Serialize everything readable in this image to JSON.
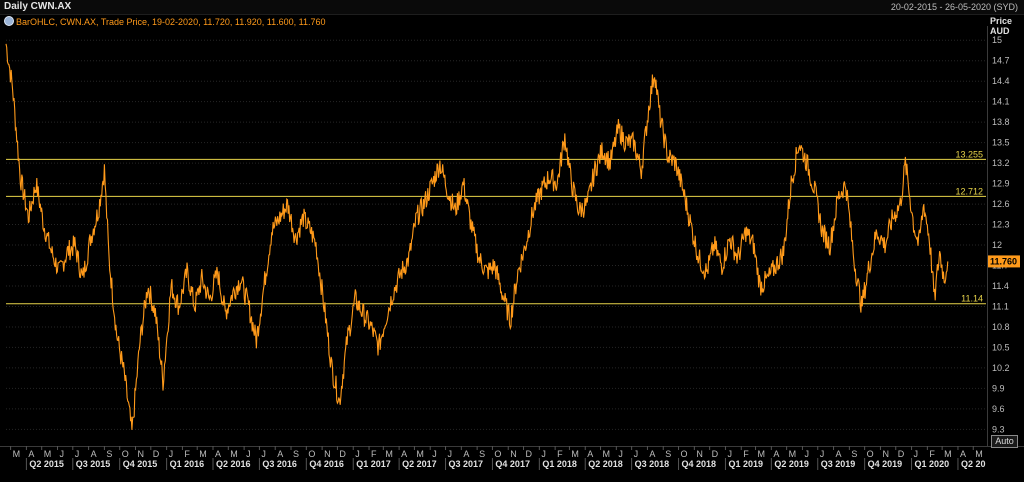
{
  "header": {
    "title": "Daily CWN.AX",
    "date_range": "20-02-2015 - 26-05-2020 (SYD)"
  },
  "legend": {
    "text": "BarOHLC, CWN.AX, Trade Price, 19-02-2020, 11.720, 11.920, 11.600, 11.760",
    "icon": "series-icon"
  },
  "axis": {
    "price_title_line1": "Price",
    "price_title_line2": "AUD",
    "auto_label": "Auto"
  },
  "colors": {
    "series": "#ff9a1a",
    "hline": "#e8d44a",
    "grid": "#262626",
    "badge_bg": "#ff9a1a"
  },
  "chart_data": {
    "type": "line",
    "title": "Daily CWN.AX",
    "ylabel": "Price AUD",
    "ylim": [
      9.1,
      15.15
    ],
    "xlim": [
      "2015-02-20",
      "2020-05-26"
    ],
    "yticks": [
      15,
      14.7,
      14.4,
      14.1,
      13.8,
      13.5,
      13.2,
      12.9,
      12.6,
      12.3,
      12,
      11.7,
      11.4,
      11.1,
      10.8,
      10.5,
      10.2,
      9.9,
      9.6,
      9.3
    ],
    "y_tick_labels": [
      "15",
      "14.7",
      "14.4",
      "14.1",
      "13.8",
      "13.5",
      "13.2",
      "12.9",
      "12.6",
      "12.3",
      "12",
      "11.7",
      "11.4",
      "11.1",
      "10.8",
      "10.5",
      "10.2",
      "9.9",
      "9.6",
      "9.3"
    ],
    "month_labels": [
      "M",
      "A",
      "M",
      "J",
      "J",
      "A",
      "S",
      "O",
      "N",
      "D",
      "J",
      "F",
      "M",
      "A",
      "M",
      "J",
      "J",
      "A",
      "S",
      "O",
      "N",
      "D",
      "J",
      "F",
      "M",
      "A",
      "M",
      "J",
      "J",
      "A",
      "S",
      "O",
      "N",
      "D",
      "J",
      "F",
      "M",
      "A",
      "M",
      "J",
      "J",
      "A",
      "S",
      "O",
      "N",
      "D",
      "J",
      "F",
      "M",
      "A",
      "M",
      "J",
      "J",
      "A",
      "S",
      "O",
      "N",
      "D",
      "J",
      "F",
      "M",
      "A",
      "M"
    ],
    "quarter_labels": [
      "Q2 2015",
      "Q3 2015",
      "Q4 2015",
      "Q1 2016",
      "Q2 2016",
      "Q3 2016",
      "Q4 2016",
      "Q1 2017",
      "Q2 2017",
      "Q3 2017",
      "Q4 2017",
      "Q1 2018",
      "Q2 2018",
      "Q3 2018",
      "Q4 2018",
      "Q1 2019",
      "Q2 2019",
      "Q3 2019",
      "Q4 2019",
      "Q1 2020",
      "Q2 20"
    ],
    "horizontal_lines": [
      {
        "value": 13.255,
        "label": "13.255"
      },
      {
        "value": 12.712,
        "label": "12.712"
      },
      {
        "value": 11.14,
        "label": "11.14"
      }
    ],
    "last_price": {
      "value": 11.76,
      "label": "11.760"
    },
    "series": [
      {
        "name": "CWN.AX",
        "points": [
          [
            "2015-02-20",
            14.95
          ],
          [
            "2015-03-05",
            14.3
          ],
          [
            "2015-03-20",
            13.0
          ],
          [
            "2015-04-05",
            12.4
          ],
          [
            "2015-04-20",
            12.9
          ],
          [
            "2015-05-05",
            12.3
          ],
          [
            "2015-05-20",
            11.9
          ],
          [
            "2015-06-05",
            11.6
          ],
          [
            "2015-06-20",
            11.9
          ],
          [
            "2015-07-05",
            12.0
          ],
          [
            "2015-07-20",
            11.5
          ],
          [
            "2015-08-05",
            12.1
          ],
          [
            "2015-08-20",
            12.5
          ],
          [
            "2015-09-01",
            13.1
          ],
          [
            "2015-09-10",
            11.8
          ],
          [
            "2015-09-25",
            10.7
          ],
          [
            "2015-10-10",
            10.1
          ],
          [
            "2015-10-25",
            9.25
          ],
          [
            "2015-11-10",
            10.6
          ],
          [
            "2015-11-25",
            11.4
          ],
          [
            "2015-12-10",
            11.0
          ],
          [
            "2015-12-25",
            10.0
          ],
          [
            "2016-01-10",
            11.4
          ],
          [
            "2016-01-25",
            11.1
          ],
          [
            "2016-02-10",
            11.6
          ],
          [
            "2016-02-25",
            11.1
          ],
          [
            "2016-03-10",
            11.5
          ],
          [
            "2016-03-25",
            11.2
          ],
          [
            "2016-04-10",
            11.6
          ],
          [
            "2016-04-25",
            11.0
          ],
          [
            "2016-05-10",
            11.3
          ],
          [
            "2016-05-25",
            11.5
          ],
          [
            "2016-06-10",
            11.1
          ],
          [
            "2016-06-25",
            10.6
          ],
          [
            "2016-07-10",
            11.4
          ],
          [
            "2016-07-25",
            12.2
          ],
          [
            "2016-08-10",
            12.4
          ],
          [
            "2016-08-25",
            12.6
          ],
          [
            "2016-09-10",
            12.1
          ],
          [
            "2016-09-25",
            12.4
          ],
          [
            "2016-10-10",
            12.2
          ],
          [
            "2016-10-20",
            12.0
          ],
          [
            "2016-11-05",
            11.1
          ],
          [
            "2016-11-20",
            10.2
          ],
          [
            "2016-12-05",
            9.7
          ],
          [
            "2016-12-20",
            10.6
          ],
          [
            "2017-01-05",
            11.2
          ],
          [
            "2017-01-20",
            11.0
          ],
          [
            "2017-02-05",
            10.8
          ],
          [
            "2017-02-20",
            10.5
          ],
          [
            "2017-03-05",
            10.9
          ],
          [
            "2017-03-20",
            11.3
          ],
          [
            "2017-04-05",
            11.6
          ],
          [
            "2017-04-20",
            11.8
          ],
          [
            "2017-05-05",
            12.4
          ],
          [
            "2017-05-20",
            12.6
          ],
          [
            "2017-06-05",
            12.9
          ],
          [
            "2017-06-20",
            13.2
          ],
          [
            "2017-07-05",
            12.8
          ],
          [
            "2017-07-20",
            12.5
          ],
          [
            "2017-08-05",
            12.9
          ],
          [
            "2017-08-20",
            12.3
          ],
          [
            "2017-09-05",
            11.8
          ],
          [
            "2017-09-20",
            11.6
          ],
          [
            "2017-10-05",
            11.7
          ],
          [
            "2017-10-20",
            11.3
          ],
          [
            "2017-11-05",
            10.9
          ],
          [
            "2017-11-20",
            11.6
          ],
          [
            "2017-12-05",
            12.0
          ],
          [
            "2017-12-20",
            12.5
          ],
          [
            "2018-01-05",
            12.8
          ],
          [
            "2018-01-20",
            13.0
          ],
          [
            "2018-02-05",
            12.9
          ],
          [
            "2018-02-20",
            13.6
          ],
          [
            "2018-03-05",
            12.9
          ],
          [
            "2018-03-20",
            12.5
          ],
          [
            "2018-04-05",
            12.6
          ],
          [
            "2018-04-20",
            13.1
          ],
          [
            "2018-05-05",
            13.4
          ],
          [
            "2018-05-20",
            13.2
          ],
          [
            "2018-06-05",
            13.7
          ],
          [
            "2018-06-20",
            13.5
          ],
          [
            "2018-07-05",
            13.5
          ],
          [
            "2018-07-20",
            13.1
          ],
          [
            "2018-08-05",
            14.1
          ],
          [
            "2018-08-15",
            14.55
          ],
          [
            "2018-08-25",
            13.9
          ],
          [
            "2018-09-10",
            13.3
          ],
          [
            "2018-09-25",
            13.2
          ],
          [
            "2018-10-10",
            12.8
          ],
          [
            "2018-10-25",
            12.3
          ],
          [
            "2018-11-10",
            11.8
          ],
          [
            "2018-11-25",
            11.6
          ],
          [
            "2018-12-10",
            12.0
          ],
          [
            "2018-12-25",
            11.7
          ],
          [
            "2019-01-10",
            12.1
          ],
          [
            "2019-01-25",
            11.8
          ],
          [
            "2019-02-10",
            12.2
          ],
          [
            "2019-02-25",
            12.0
          ],
          [
            "2019-03-10",
            11.4
          ],
          [
            "2019-03-25",
            11.5
          ],
          [
            "2019-04-10",
            11.7
          ],
          [
            "2019-04-25",
            11.9
          ],
          [
            "2019-05-10",
            12.9
          ],
          [
            "2019-05-25",
            13.5
          ],
          [
            "2019-06-10",
            13.2
          ],
          [
            "2019-06-25",
            12.8
          ],
          [
            "2019-07-10",
            12.2
          ],
          [
            "2019-07-25",
            12.0
          ],
          [
            "2019-08-10",
            12.7
          ],
          [
            "2019-08-25",
            12.9
          ],
          [
            "2019-09-10",
            11.8
          ],
          [
            "2019-09-25",
            11.1
          ],
          [
            "2019-10-10",
            11.7
          ],
          [
            "2019-10-25",
            12.2
          ],
          [
            "2019-11-10",
            12.0
          ],
          [
            "2019-11-25",
            12.4
          ],
          [
            "2019-12-10",
            12.6
          ],
          [
            "2019-12-20",
            13.2
          ],
          [
            "2020-01-05",
            12.3
          ],
          [
            "2020-01-15",
            12.0
          ],
          [
            "2020-01-25",
            12.6
          ],
          [
            "2020-02-05",
            12.1
          ],
          [
            "2020-02-15",
            11.2
          ],
          [
            "2020-02-25",
            11.9
          ],
          [
            "2020-03-05",
            11.5
          ],
          [
            "2020-03-12",
            11.76
          ]
        ]
      }
    ]
  }
}
